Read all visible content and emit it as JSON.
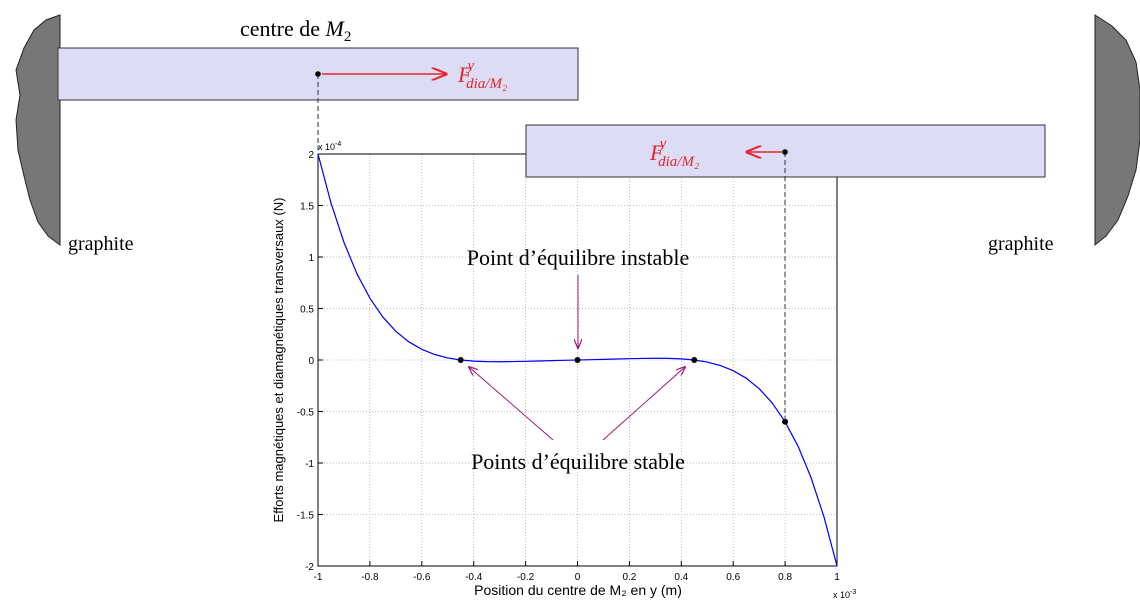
{
  "chart_data": {
    "type": "line",
    "x_label": "Position du centre de M₂ en y (m)",
    "y_label": "Efforts magnétiques et diamagnétiques transversaux (N)",
    "x_multiplier": {
      "base": "x 10",
      "exponent": "-3"
    },
    "y_multiplier": {
      "base": "x 10",
      "exponent": "-4"
    },
    "xlim": [
      -1,
      1
    ],
    "ylim": [
      -2,
      2
    ],
    "xticks": [
      -1,
      -0.8,
      -0.6,
      -0.4,
      -0.2,
      0,
      0.2,
      0.4,
      0.6,
      0.8,
      1
    ],
    "yticks": [
      -2,
      -1.5,
      -1,
      -0.5,
      0,
      0.5,
      1,
      1.5,
      2
    ],
    "grid": true,
    "series": [
      {
        "color": "#0000ff",
        "x": [
          -1,
          -0.95,
          -0.9,
          -0.85,
          -0.8,
          -0.75,
          -0.7,
          -0.65,
          -0.6,
          -0.55,
          -0.5,
          -0.45,
          -0.4,
          -0.35,
          -0.3,
          -0.25,
          -0.2,
          -0.15,
          -0.1,
          -0.05,
          0,
          0.05,
          0.1,
          0.15,
          0.2,
          0.25,
          0.3,
          0.35,
          0.4,
          0.45,
          0.5,
          0.55,
          0.6,
          0.65,
          0.7,
          0.75,
          0.8,
          0.85,
          0.9,
          0.95,
          1
        ],
        "values": [
          2,
          1.5248,
          1.1421,
          0.838,
          0.6,
          0.4166,
          0.2783,
          0.1765,
          0.1036,
          0.0533,
          0.0203,
          0,
          -0.0111,
          -0.016,
          -0.0169,
          -0.0154,
          -0.0127,
          -0.0095,
          -0.0062,
          -0.0031,
          0,
          0.0031,
          0.0062,
          0.0095,
          0.0127,
          0.0154,
          0.0169,
          0.016,
          0.0111,
          0,
          -0.0203,
          -0.0533,
          -0.1036,
          -0.1765,
          -0.2783,
          -0.4166,
          -0.6,
          -0.838,
          -1.1421,
          -1.5248,
          -2
        ]
      },
      {
        "type": "scatter",
        "color": "#000000",
        "x": [
          -0.45,
          0,
          0.45,
          0.8
        ],
        "values": [
          0,
          0,
          0,
          -0.6
        ]
      }
    ],
    "annotations": {
      "unstable": "Point d’équilibre instable",
      "stable": "Points d’équilibre stable",
      "wall_left": "graphite",
      "wall_right": "graphite",
      "top_bar": {
        "text": "centre de",
        "symbol": "M",
        "subscript": "2"
      },
      "force_top": {
        "symbol": "F",
        "superscript": "y",
        "subscript": "dia/M₂"
      },
      "force_right": {
        "symbol": "F",
        "superscript": "y",
        "subscript": "dia/M₂"
      }
    }
  }
}
